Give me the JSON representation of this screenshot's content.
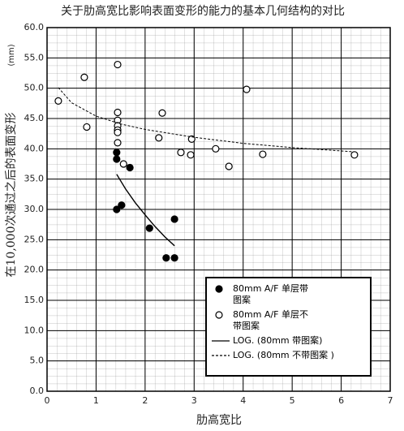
{
  "chart_data": {
    "type": "scatter",
    "title": "关于肋高宽比影响表面变形的能力的基本几何结构的对比",
    "x_label": "肋高宽比",
    "y_label": "在10,000次通过之后的表面变形",
    "y_unit": "(mm)",
    "xlim": [
      0,
      7
    ],
    "xticks": [
      0,
      1,
      2,
      3,
      4,
      5,
      6,
      7
    ],
    "ylim": [
      0,
      60
    ],
    "yticks": [
      {
        "value": 0,
        "label": "0.0"
      },
      {
        "value": 5,
        "label": "5.0"
      },
      {
        "value": 10,
        "label": "10.0"
      },
      {
        "value": 15,
        "label": "15.0"
      },
      {
        "value": 20,
        "label": "20.0"
      },
      {
        "value": 25,
        "label": "25.0"
      },
      {
        "value": 30,
        "label": "30.0"
      },
      {
        "value": 35,
        "label": "35.0"
      },
      {
        "value": 40,
        "label": "40.0"
      },
      {
        "value": 45,
        "label": "45.0"
      },
      {
        "value": 50,
        "label": "50.0"
      },
      {
        "value": 55,
        "label": "55.0"
      },
      {
        "value": 60,
        "label": "60.0"
      }
    ],
    "grid": true,
    "series": [
      {
        "name": "80mm A/F 单层带图案",
        "type": "scatter",
        "marker": "filled",
        "color": "#000000",
        "x": [
          1.42,
          1.42,
          1.69,
          1.42,
          1.52,
          2.09,
          2.6,
          2.43,
          2.6
        ],
        "values": [
          39.4,
          38.3,
          36.9,
          30.0,
          30.7,
          26.9,
          28.4,
          22.0,
          22.0
        ]
      },
      {
        "name": "80mm A/F 单层不带图案",
        "type": "scatter",
        "marker": "open",
        "color": "#000000",
        "x": [
          0.23,
          0.76,
          0.81,
          1.44,
          1.44,
          1.44,
          1.44,
          1.44,
          1.44,
          1.44,
          1.56,
          2.35,
          2.28,
          2.95,
          2.73,
          2.93,
          3.44,
          4.07,
          3.71,
          4.4,
          6.27
        ],
        "values": [
          47.9,
          51.8,
          43.6,
          53.9,
          46.0,
          44.7,
          43.8,
          43.1,
          42.7,
          41.0,
          37.5,
          45.9,
          41.8,
          41.6,
          39.4,
          39.0,
          40.0,
          49.8,
          37.1,
          39.1,
          39.0
        ]
      },
      {
        "name": "LOG. (80mm 带图案)",
        "type": "line",
        "dash": false,
        "color": "#000000",
        "x": [
          1.42,
          1.6,
          1.8,
          2.0,
          2.2,
          2.4,
          2.6
        ],
        "values": [
          35.8,
          33.4,
          31.1,
          29.1,
          27.2,
          25.5,
          24.0
        ]
      },
      {
        "name": "LOG. (80mm 不带图案 )",
        "type": "line",
        "dash": true,
        "color": "#000000",
        "x": [
          0.23,
          0.5,
          1,
          1.5,
          2,
          3,
          4,
          5,
          6.27
        ],
        "values": [
          50.1,
          47.6,
          45.4,
          44.1,
          43.2,
          41.9,
          40.9,
          40.2,
          39.5
        ]
      }
    ]
  }
}
